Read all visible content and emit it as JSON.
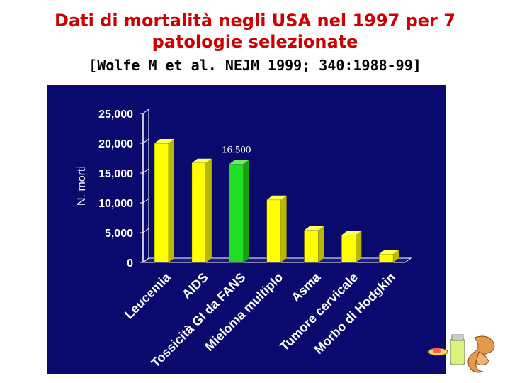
{
  "slide": {
    "title_line1": "Dati di mortalità negli USA nel 1997 per 7",
    "title_line2": "patologie selezionate",
    "citation": "[Wolfe M et al. NEJM 1999; 340:1988-99]"
  },
  "chart_data": {
    "type": "bar",
    "categories": [
      "Leucemia",
      "AIDS",
      "Tossicità GI da FANS",
      "Mieloma multiplo",
      "Asma",
      "Tumore cervicale",
      "Morbo di Hodgkin"
    ],
    "values": [
      20000,
      16700,
      16500,
      10500,
      5400,
      4600,
      1400
    ],
    "ylabel": "N. morti",
    "ylim": [
      0,
      25000
    ],
    "y_ticks": [
      "0",
      "5,000",
      "10,000",
      "15,000",
      "20,000",
      "25,000"
    ],
    "annotation": "16.500",
    "bar_colors": [
      "#ffff00",
      "#ffff00",
      "#22dd22",
      "#ffff00",
      "#ffff00",
      "#ffff00",
      "#ffff00"
    ],
    "background": "#0a0a6e",
    "style": "3d-bars",
    "grid": false
  }
}
